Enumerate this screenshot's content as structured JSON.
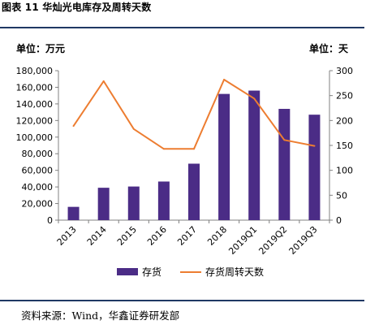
{
  "figure": {
    "title": "图表 11 华灿光电库存及周转天数",
    "left_unit": "单位：万元",
    "right_unit": "单位：天",
    "source": "资料来源：Wind，华鑫证券研发部"
  },
  "colors": {
    "bar": "#4b2c86",
    "line": "#ed7d31",
    "rule": "#1f3864",
    "axis": "#808080"
  },
  "chart_data": {
    "type": "bar",
    "categories": [
      "2013",
      "2014",
      "2015",
      "2016",
      "2017",
      "2018",
      "2019Q1",
      "2019Q2",
      "2019Q3"
    ],
    "series": [
      {
        "name": "存货",
        "type": "bar",
        "axis": "left",
        "values": [
          16000,
          39000,
          40500,
          46500,
          68000,
          152000,
          156000,
          134000,
          127000
        ]
      },
      {
        "name": "存货周转天数",
        "type": "line",
        "axis": "right",
        "values": [
          189,
          279,
          183,
          143,
          143,
          282,
          244,
          161,
          149
        ]
      }
    ],
    "y_left": {
      "min": 0,
      "max": 180000,
      "step": 20000,
      "ticks": [
        "0",
        "20,000",
        "40,000",
        "60,000",
        "80,000",
        "100,000",
        "120,000",
        "140,000",
        "160,000",
        "180,000"
      ]
    },
    "y_right": {
      "min": 0,
      "max": 300,
      "step": 50,
      "ticks": [
        "0",
        "50",
        "100",
        "150",
        "200",
        "250",
        "300"
      ]
    },
    "grid": false,
    "legend": "bottom"
  }
}
